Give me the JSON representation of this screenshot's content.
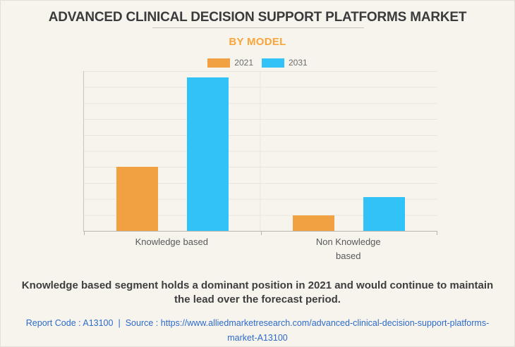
{
  "header": {
    "title": "ADVANCED CLINICAL DECISION SUPPORT PLATFORMS MARKET",
    "subtitle": "BY MODEL"
  },
  "legend": [
    {
      "label": "2021",
      "color": "#f1a142"
    },
    {
      "label": "2031",
      "color": "#31c3f7"
    }
  ],
  "chart_data": {
    "type": "bar",
    "title": "BY MODEL",
    "categories": [
      "Knowledge based",
      "Non Knowledge based"
    ],
    "series": [
      {
        "name": "2021",
        "color": "#f1a142",
        "values": [
          4.0,
          0.95
        ]
      },
      {
        "name": "2031",
        "color": "#31c3f7",
        "values": [
          9.6,
          2.1
        ]
      }
    ],
    "xlabel": "",
    "ylabel": "",
    "ylim": [
      0,
      10
    ],
    "grid": true,
    "y_tick_labels_visible": false,
    "legend_position": "top"
  },
  "note": {
    "text": "Knowledge based segment holds a dominant position in 2021 and would continue to maintain the lead over the forecast period."
  },
  "footer": {
    "report_code": "Report Code : A13100",
    "separator": "|",
    "source_label": "Source :",
    "source_url": "https://www.alliedmarketresearch.com/advanced-clinical-decision-support-platforms-market-A13100"
  },
  "colors": {
    "background": "#f7f4ee",
    "title_text": "#3b3b3b",
    "subtitle_text": "#f8a63a",
    "bar_2021": "#f1a142",
    "bar_2031": "#31c3f7",
    "gridline": "#e8e5de",
    "axis": "#b9b6b0",
    "category_text": "#585858",
    "note_text": "#3e3e3e",
    "link_text": "#2c6bca"
  }
}
